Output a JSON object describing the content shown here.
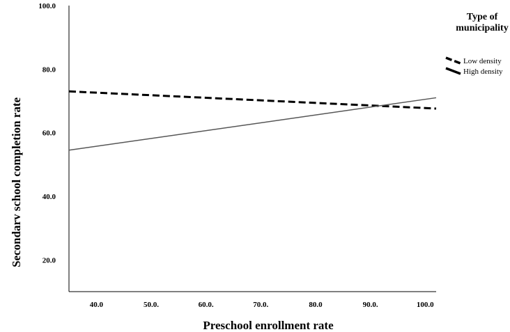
{
  "chart_data": {
    "type": "line",
    "title": "",
    "xlabel": "Preschool enrollment rate",
    "ylabel": "Secondarv school completion rate",
    "xlim": [
      35,
      102
    ],
    "ylim": [
      10,
      100
    ],
    "x_ticks": [
      40,
      50,
      60,
      70,
      80,
      90,
      100
    ],
    "x_tick_labels": [
      "40.0",
      "50.0.",
      "60.0.",
      "70.0.",
      "80.0",
      "90.0.",
      "100.0"
    ],
    "y_ticks": [
      20,
      40,
      60,
      80,
      100
    ],
    "y_tick_labels": [
      "20.0",
      "40.0",
      "60.0",
      "80.0",
      "100.0"
    ],
    "grid": false,
    "legend": {
      "title": [
        "Type of",
        "municipality"
      ],
      "placement": "top-right"
    },
    "series": [
      {
        "name": "Low density",
        "style": "dashed",
        "color": "#000000",
        "x": [
          35,
          102
        ],
        "y": [
          73.0,
          67.6
        ]
      },
      {
        "name": "High density",
        "style": "solid",
        "color": "#555555",
        "x": [
          35,
          102
        ],
        "y": [
          54.5,
          71.0
        ]
      }
    ]
  }
}
